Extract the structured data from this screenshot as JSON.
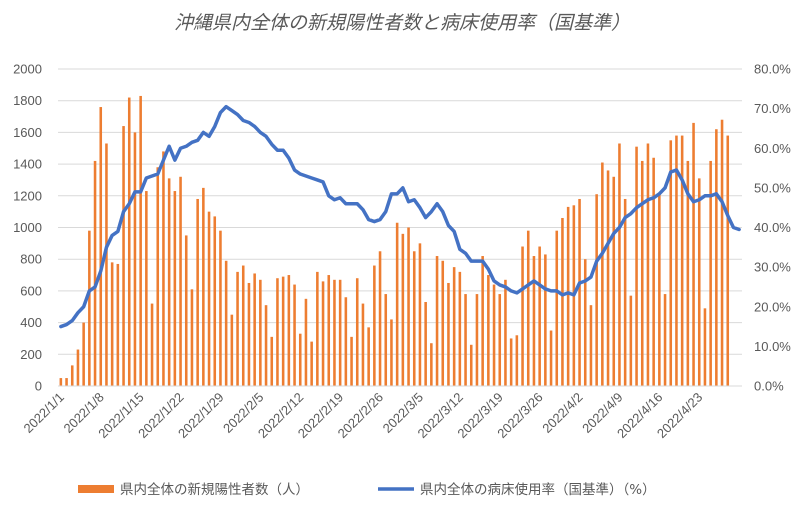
{
  "chart_data": {
    "type": "bar+line",
    "title": "沖縄県内全体の新規陽性者数と病床使用率（国基準）",
    "x_tick_labels": [
      "2022/1/1",
      "2022/1/8",
      "2022/1/15",
      "2022/1/22",
      "2022/1/29",
      "2022/2/5",
      "2022/2/12",
      "2022/2/19",
      "2022/2/26",
      "2022/3/5",
      "2022/3/12",
      "2022/3/19",
      "2022/3/26",
      "2022/4/2",
      "2022/4/9",
      "2022/4/16",
      "2022/4/23"
    ],
    "y_left_ticks": [
      "0",
      "200",
      "400",
      "600",
      "800",
      "1000",
      "1200",
      "1400",
      "1600",
      "1800",
      "2000"
    ],
    "y_right_ticks": [
      "0.0%",
      "10.0%",
      "20.0%",
      "30.0%",
      "40.0%",
      "50.0%",
      "60.0%",
      "70.0%",
      "80.0%"
    ],
    "ylim_left": [
      0,
      2000
    ],
    "ylim_right": [
      0,
      80
    ],
    "grid": true,
    "legend_position": "bottom",
    "colors": {
      "bar": "#ED7D31",
      "line": "#4472C4"
    },
    "series": [
      {
        "name": "県内全体の新規陽性者数（人）",
        "axis": "left",
        "kind": "bar",
        "start_date": "2022/1/1",
        "values": [
          50,
          50,
          130,
          230,
          400,
          980,
          1420,
          1760,
          1530,
          780,
          770,
          1640,
          1820,
          1600,
          1830,
          1230,
          520,
          1380,
          1480,
          1310,
          1230,
          1320,
          950,
          610,
          1180,
          1250,
          1100,
          1070,
          980,
          790,
          450,
          720,
          760,
          650,
          710,
          670,
          510,
          310,
          680,
          690,
          700,
          640,
          330,
          550,
          280,
          720,
          660,
          700,
          670,
          670,
          560,
          310,
          680,
          520,
          370,
          760,
          850,
          580,
          420,
          1030,
          960,
          1000,
          850,
          900,
          530,
          270,
          820,
          790,
          650,
          750,
          720,
          580,
          260,
          580,
          820,
          700,
          640,
          580,
          670,
          300,
          320,
          880,
          980,
          820,
          880,
          830,
          350,
          980,
          1060,
          1130,
          1140,
          1180,
          800,
          510,
          1210,
          1410,
          1360,
          1320,
          1530,
          1180,
          570,
          1510,
          1420,
          1530,
          1440,
          1220,
          580,
          1550,
          1580,
          1580,
          1420,
          1660,
          1310,
          490,
          1420,
          1620,
          1680,
          1580
        ]
      },
      {
        "name": "県内全体の病床使用率（国基準）（%）",
        "axis": "right",
        "kind": "line",
        "start_date": "2022/1/1",
        "values": [
          15,
          15.5,
          16.5,
          18.5,
          20,
          24,
          25,
          29,
          35,
          38,
          39,
          44,
          46,
          49,
          49,
          52.5,
          53,
          53.5,
          57,
          60.5,
          57,
          60,
          60.5,
          61.5,
          62,
          64,
          63,
          65.5,
          69,
          70.5,
          69.5,
          68.5,
          67,
          66.5,
          65.5,
          64,
          63,
          61,
          59.5,
          59.5,
          57.5,
          54.5,
          53.5,
          53,
          52.5,
          52,
          51.5,
          48,
          47,
          47.5,
          46,
          46,
          46,
          44.5,
          42,
          41.5,
          42,
          44,
          48.5,
          48.5,
          50,
          46.5,
          47,
          45,
          42.5,
          44,
          46,
          44,
          40.5,
          39,
          34.5,
          33.5,
          31.5,
          31.5,
          31.5,
          29.5,
          26.5,
          25.5,
          25,
          24,
          23.5,
          24.5,
          25.5,
          26.5,
          25.5,
          24.5,
          24,
          24,
          23,
          23.5,
          23,
          26,
          26.5,
          27.5,
          31.5,
          33.5,
          36,
          38.5,
          40,
          42.5,
          43.5,
          45,
          46,
          47,
          47.5,
          48.5,
          50,
          54,
          54.5,
          52,
          48.5,
          46.5,
          47,
          48,
          48,
          48.5,
          46.5,
          43,
          40,
          39.5
        ]
      }
    ]
  }
}
